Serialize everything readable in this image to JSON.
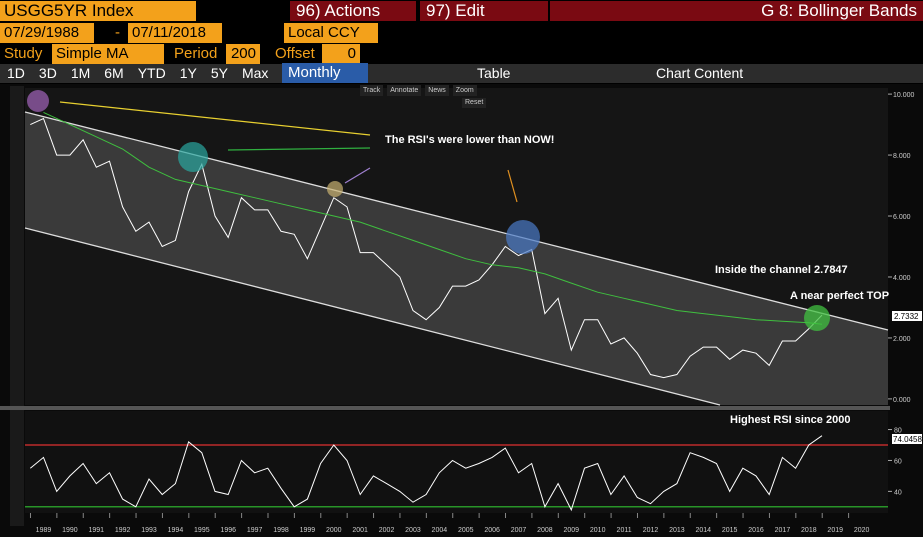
{
  "header": {
    "ticker": "USGG5YR Index",
    "actions": "96) Actions",
    "edit": "97) Edit",
    "title": "G 8: Bollinger Bands"
  },
  "dates": {
    "start": "07/29/1988",
    "dash": "-",
    "end": "07/11/2018",
    "currency": "Local CCY"
  },
  "study": {
    "label": "Study",
    "value": "Simple MA",
    "period_label": "Period",
    "period": "200",
    "offset_label": "Offset",
    "offset": "0"
  },
  "toolbar": {
    "periods": [
      "1D",
      "3D",
      "1M",
      "6M",
      "YTD",
      "1Y",
      "5Y",
      "Max"
    ],
    "frequency": "Monthly",
    "table": "Table",
    "content": "Chart Content"
  },
  "chart_tools": {
    "items": [
      "Track",
      "Annotate",
      "News",
      "Zoom"
    ],
    "reset": "Reset"
  },
  "price_panel": {
    "xlim": [
      1988.3,
      2021.0
    ],
    "xticks": [
      1989,
      1990,
      1991,
      1992,
      1993,
      1994,
      1995,
      1996,
      1997,
      1998,
      1999,
      2000,
      2001,
      2002,
      2003,
      2004,
      2005,
      2006,
      2007,
      2008,
      2009,
      2010,
      2011,
      2012,
      2013,
      2014,
      2015,
      2016,
      2017,
      2018,
      2019,
      2020
    ],
    "ylim": [
      -0.2,
      10.2
    ],
    "yticks": [
      {
        "value": 10,
        "label": "10.000"
      },
      {
        "value": 8,
        "label": "8.000"
      },
      {
        "value": 6,
        "label": "6.000"
      },
      {
        "value": 4,
        "label": "4.000"
      },
      {
        "value": 2,
        "label": "2.000"
      },
      {
        "value": 0,
        "label": "0.000"
      }
    ],
    "series": [
      {
        "color": "#ffffff",
        "x": [
          1988.5,
          1989,
          1989.5,
          1990,
          1990.5,
          1991,
          1991.5,
          1992,
          1992.5,
          1993,
          1993.5,
          1994,
          1994.5,
          1995,
          1995.5,
          1996,
          1996.5,
          1997,
          1997.5,
          1998,
          1998.5,
          1999,
          1999.5,
          2000,
          2000.5,
          2001,
          2001.5,
          2002,
          2002.5,
          2003,
          2003.5,
          2004,
          2004.5,
          2005,
          2005.5,
          2006,
          2006.5,
          2007,
          2007.5,
          2008,
          2008.5,
          2009,
          2009.5,
          2010,
          2010.5,
          2011,
          2011.5,
          2012,
          2012.5,
          2013,
          2013.5,
          2014,
          2014.5,
          2015,
          2015.5,
          2016,
          2016.5,
          2017,
          2017.5,
          2018,
          2018.5
        ],
        "values": [
          9.0,
          9.2,
          8.0,
          8.0,
          8.5,
          7.6,
          7.8,
          6.3,
          5.5,
          5.8,
          5.0,
          5.2,
          6.8,
          7.7,
          6.0,
          5.3,
          6.6,
          6.2,
          6.2,
          5.5,
          5.4,
          4.6,
          5.6,
          6.6,
          6.3,
          4.8,
          4.8,
          4.4,
          4.0,
          2.9,
          2.6,
          3.0,
          3.7,
          3.7,
          3.9,
          4.4,
          5.0,
          4.7,
          4.9,
          2.8,
          3.3,
          1.6,
          2.6,
          2.6,
          1.8,
          2.0,
          1.5,
          0.8,
          0.7,
          0.8,
          1.4,
          1.7,
          1.7,
          1.3,
          1.6,
          1.5,
          1.1,
          1.9,
          1.9,
          2.3,
          2.75
        ]
      },
      {
        "color": "#3fbf3f",
        "x": [
          1989,
          1990,
          1991,
          1992,
          1993,
          1994,
          1995,
          1996,
          1997,
          1998,
          1999,
          2000,
          2001,
          2002,
          2003,
          2004,
          2005,
          2006,
          2007,
          2008,
          2009,
          2010,
          2011,
          2012,
          2013,
          2014,
          2015,
          2016,
          2017,
          2018,
          2018.5
        ],
        "values": [
          9.4,
          9.0,
          8.6,
          8.2,
          7.6,
          7.2,
          7.0,
          6.8,
          6.6,
          6.4,
          6.2,
          6.0,
          5.8,
          5.5,
          5.2,
          4.9,
          4.6,
          4.4,
          4.3,
          4.1,
          3.8,
          3.5,
          3.3,
          3.1,
          2.9,
          2.8,
          2.7,
          2.6,
          2.55,
          2.5,
          2.45
        ]
      }
    ],
    "last_value": "2.7332",
    "annotations": [
      "The RSI's were lower than NOW!",
      "Inside the channel 2.7847",
      "A near perfect TOP"
    ]
  },
  "rsi_panel": {
    "ylim": [
      26,
      92
    ],
    "yticks": [
      80,
      60,
      40
    ],
    "levels": [
      {
        "value": 70,
        "color": "#e03030"
      },
      {
        "value": 30,
        "color": "#30c030"
      }
    ],
    "series": [
      {
        "color": "#ffffff",
        "x": [
          1988.5,
          1989,
          1989.5,
          1990,
          1990.5,
          1991,
          1991.5,
          1992,
          1992.5,
          1993,
          1993.5,
          1994,
          1994.5,
          1995,
          1995.5,
          1996,
          1996.5,
          1997,
          1997.5,
          1998,
          1998.5,
          1999,
          1999.5,
          2000,
          2000.5,
          2001,
          2001.5,
          2002,
          2002.5,
          2003,
          2003.5,
          2004,
          2004.5,
          2005,
          2005.5,
          2006,
          2006.5,
          2007,
          2007.5,
          2008,
          2008.5,
          2009,
          2009.5,
          2010,
          2010.5,
          2011,
          2011.5,
          2012,
          2012.5,
          2013,
          2013.5,
          2014,
          2014.5,
          2015,
          2015.5,
          2016,
          2016.5,
          2017,
          2017.5,
          2018,
          2018.5
        ],
        "values": [
          55,
          62,
          40,
          50,
          58,
          45,
          52,
          35,
          30,
          48,
          38,
          45,
          72,
          65,
          40,
          38,
          60,
          52,
          55,
          42,
          30,
          35,
          58,
          70,
          60,
          38,
          50,
          45,
          40,
          33,
          38,
          52,
          60,
          55,
          58,
          62,
          68,
          52,
          58,
          30,
          45,
          28,
          55,
          58,
          38,
          50,
          36,
          32,
          40,
          45,
          65,
          62,
          58,
          40,
          55,
          50,
          38,
          62,
          55,
          70,
          76
        ]
      }
    ],
    "last_value": "74.0458",
    "annotation": "Highest RSI since 2000"
  }
}
